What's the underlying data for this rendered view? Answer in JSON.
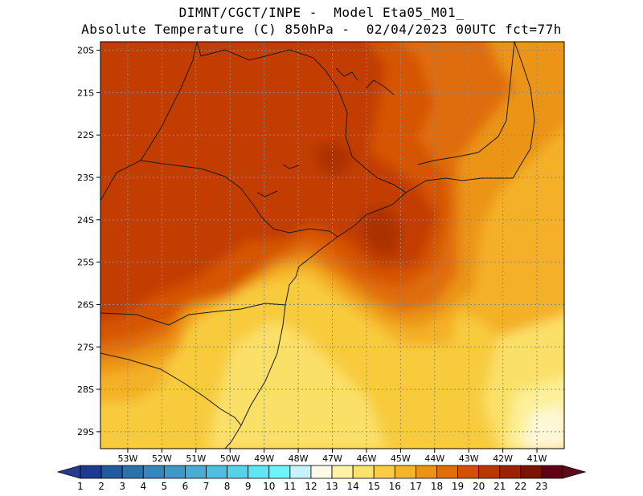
{
  "header": {
    "line1": "DIMNT/CGCT/INPE -  Model Eta05_M01_",
    "line2": "Absolute Temperature (C) 850hPa -  02/04/2023 00UTC fct=77h"
  },
  "map": {
    "lat_labels": [
      "20S",
      "21S",
      "22S",
      "23S",
      "24S",
      "25S",
      "26S",
      "27S",
      "28S",
      "29S"
    ],
    "lon_labels": [
      "53W",
      "52W",
      "51W",
      "50W",
      "49W",
      "48W",
      "47W",
      "46W",
      "45W",
      "44W",
      "43W",
      "42W",
      "41W"
    ],
    "lon_range": [
      -53.8,
      -40.2
    ],
    "lat_range": [
      -29.4,
      -19.8
    ],
    "field_colors": {
      "t20": "#ab3000",
      "t19": "#c33e00",
      "t18": "#d65504",
      "t17": "#e06d0a",
      "t16": "#eb9414",
      "t15": "#f4b028",
      "t14": "#f8cb3e",
      "t13": "#fbe068",
      "t12": "#fdf098",
      "t11": "#fef8d8"
    }
  },
  "colorbar": {
    "labels": [
      "1",
      "2",
      "3",
      "4",
      "5",
      "6",
      "7",
      "8",
      "9",
      "10",
      "11",
      "12",
      "13",
      "14",
      "15",
      "16",
      "17",
      "18",
      "19",
      "20",
      "21",
      "22",
      "23"
    ],
    "colors": [
      "#1c3a8f",
      "#215a9e",
      "#2a72ae",
      "#3486bc",
      "#3f98c8",
      "#48acd4",
      "#4fbfdf",
      "#57d2e8",
      "#60e6f2",
      "#6cf4fa",
      "#c8f2fa",
      "#fefae6",
      "#fdf2a4",
      "#fbe26e",
      "#f9cd46",
      "#f4b42c",
      "#eb9414",
      "#e06e0a",
      "#d45006",
      "#b93800",
      "#9a2400",
      "#7c1200",
      "#600014"
    ],
    "left_arrow_color": "#243d92",
    "right_arrow_color": "#5e0a18"
  }
}
